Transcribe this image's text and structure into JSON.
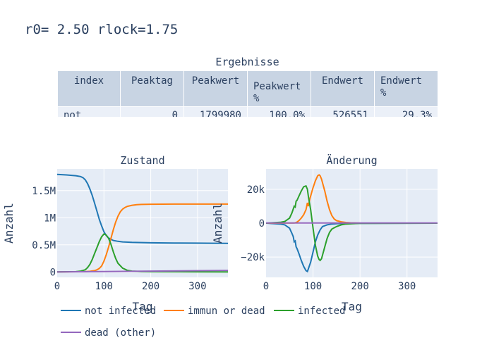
{
  "title": "r0= 2.50 rlock=1.75",
  "table": {
    "title": "Ergebnisse",
    "headers": [
      "index",
      "Peaktag",
      "Peakwert",
      "Peakwert %",
      "Endwert",
      "Endwert %"
    ],
    "rows": [
      [
        "not",
        "0",
        "1799980",
        "100.0%",
        "526551",
        "29.3%"
      ]
    ]
  },
  "colors": {
    "not_infected": "#1f77b4",
    "immun_or_dead": "#ff7f0e",
    "infected": "#2ca02c",
    "dead_other": "#9467bd",
    "plot_bg": "#e5ecf6",
    "table_header_bg": "#c8d4e3",
    "table_cell_bg": "#ebf0f8"
  },
  "legend": {
    "items": [
      {
        "key": "not_infected",
        "label": "not infected"
      },
      {
        "key": "immun_or_dead",
        "label": "immun or dead"
      },
      {
        "key": "infected",
        "label": "infected"
      },
      {
        "key": "dead_other",
        "label": "dead (other)"
      }
    ]
  },
  "chart_data": [
    {
      "type": "line",
      "title": "Zustand",
      "xlabel": "Tag",
      "ylabel": "Anzahl",
      "xlim": [
        0,
        365
      ],
      "ylim": [
        -100000,
        1900000
      ],
      "xticks": [
        0,
        100,
        200,
        300
      ],
      "xtick_labels": [
        "0",
        "100",
        "200",
        "300"
      ],
      "yticks": [
        0,
        500000,
        1000000,
        1500000
      ],
      "ytick_labels": [
        "0",
        "0.5M",
        "1M",
        "1.5M"
      ],
      "grid": true,
      "series": [
        {
          "name": "not infected",
          "key": "not_infected",
          "x": [
            0,
            20,
            40,
            50,
            55,
            60,
            65,
            70,
            75,
            80,
            85,
            90,
            95,
            100,
            105,
            110,
            120,
            130,
            140,
            160,
            200,
            250,
            300,
            365
          ],
          "y": [
            1800000,
            1790000,
            1775000,
            1760000,
            1740000,
            1700000,
            1630000,
            1530000,
            1410000,
            1270000,
            1120000,
            970000,
            850000,
            740000,
            670000,
            625000,
            580000,
            565000,
            555000,
            545000,
            538000,
            534000,
            531000,
            527000
          ]
        },
        {
          "name": "immun or dead",
          "key": "immun_or_dead",
          "x": [
            0,
            60,
            70,
            80,
            85,
            90,
            95,
            100,
            105,
            110,
            115,
            120,
            125,
            130,
            135,
            140,
            145,
            150,
            160,
            170,
            180,
            200,
            250,
            300,
            365
          ],
          "y": [
            0,
            5000,
            12000,
            25000,
            40000,
            65000,
            110000,
            200000,
            320000,
            460000,
            620000,
            780000,
            920000,
            1030000,
            1110000,
            1160000,
            1190000,
            1210000,
            1230000,
            1240000,
            1245000,
            1250000,
            1252000,
            1252000,
            1252000
          ]
        },
        {
          "name": "infected",
          "key": "infected",
          "x": [
            0,
            40,
            50,
            60,
            65,
            70,
            75,
            80,
            85,
            90,
            95,
            100,
            105,
            110,
            115,
            120,
            125,
            130,
            140,
            150,
            160,
            180,
            200,
            300,
            365
          ],
          "y": [
            0,
            5000,
            15000,
            40000,
            80000,
            140000,
            230000,
            340000,
            450000,
            560000,
            650000,
            700000,
            680000,
            620000,
            510000,
            370000,
            250000,
            160000,
            70000,
            30000,
            15000,
            8000,
            5000,
            2000,
            1000
          ]
        },
        {
          "name": "dead (other)",
          "key": "dead_other",
          "x": [
            0,
            100,
            200,
            300,
            365
          ],
          "y": [
            0,
            8000,
            16000,
            24000,
            29000
          ]
        }
      ]
    },
    {
      "type": "line",
      "title": "Änderung",
      "xlabel": "Tag",
      "ylabel": "Anzahl",
      "xlim": [
        0,
        365
      ],
      "ylim": [
        -32000,
        32000
      ],
      "xticks": [
        0,
        100,
        200,
        300
      ],
      "xtick_labels": [
        "0",
        "100",
        "200",
        "300"
      ],
      "yticks": [
        -20000,
        0,
        20000
      ],
      "ytick_labels": [
        "−20k",
        "0",
        "20k"
      ],
      "grid": true,
      "series": [
        {
          "name": "not infected",
          "key": "not_infected",
          "x": [
            0,
            30,
            40,
            50,
            55,
            58,
            60,
            62,
            64,
            66,
            70,
            75,
            80,
            85,
            88,
            90,
            95,
            100,
            105,
            110,
            115,
            120,
            130,
            140,
            150,
            160,
            200,
            365
          ],
          "y": [
            0,
            -500,
            -1000,
            -3000,
            -6000,
            -8000,
            -11000,
            -10500,
            -14000,
            -15000,
            -18000,
            -22000,
            -25500,
            -28000,
            -28500,
            -27000,
            -23000,
            -17000,
            -11000,
            -7000,
            -4000,
            -2000,
            -1000,
            -500,
            -300,
            -200,
            -100,
            0
          ]
        },
        {
          "name": "immun or dead",
          "key": "immun_or_dead",
          "x": [
            0,
            60,
            65,
            70,
            75,
            80,
            85,
            88,
            90,
            93,
            95,
            100,
            105,
            110,
            113,
            115,
            118,
            120,
            125,
            130,
            135,
            140,
            145,
            150,
            160,
            170,
            180,
            200,
            365
          ],
          "y": [
            0,
            100,
            500,
            1500,
            3000,
            5000,
            8000,
            12000,
            10000,
            14000,
            16000,
            21000,
            25000,
            28000,
            28500,
            28000,
            26000,
            24000,
            19000,
            13000,
            8000,
            4500,
            2500,
            1500,
            800,
            400,
            200,
            50,
            0
          ]
        },
        {
          "name": "infected",
          "key": "infected",
          "x": [
            0,
            30,
            40,
            50,
            55,
            60,
            62,
            64,
            66,
            70,
            75,
            80,
            85,
            88,
            90,
            95,
            100,
            105,
            110,
            113,
            115,
            118,
            120,
            125,
            130,
            135,
            140,
            150,
            160,
            170,
            200,
            365
          ],
          "y": [
            0,
            500,
            1000,
            3000,
            6000,
            10000,
            9500,
            13000,
            13500,
            16000,
            19000,
            21500,
            22000,
            20000,
            16000,
            8000,
            -3000,
            -13000,
            -19500,
            -21500,
            -22000,
            -21000,
            -19000,
            -14000,
            -9000,
            -5500,
            -3500,
            -2000,
            -1000,
            -500,
            -100,
            0
          ]
        },
        {
          "name": "dead (other)",
          "key": "dead_other",
          "x": [
            0,
            365
          ],
          "y": [
            80,
            80
          ]
        }
      ]
    }
  ]
}
